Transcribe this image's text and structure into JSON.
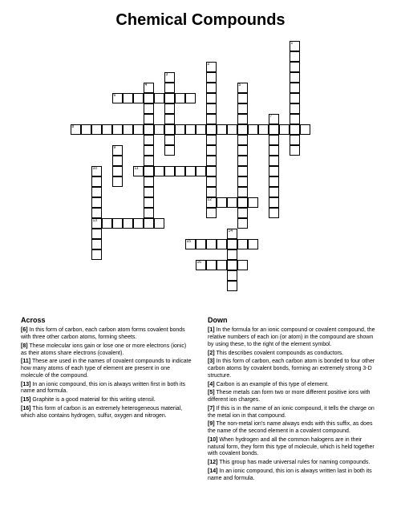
{
  "title": "Chemical Compounds",
  "grid": {
    "cell_size": 13,
    "cols": 25,
    "rows": 25,
    "background": "#ffffff",
    "border_color": "#000000",
    "cells": [
      {
        "r": 0,
        "c": 21,
        "n": "1"
      },
      {
        "r": 1,
        "c": 21
      },
      {
        "r": 2,
        "c": 13,
        "n": "2"
      },
      {
        "r": 2,
        "c": 21
      },
      {
        "r": 3,
        "c": 9,
        "n": "3"
      },
      {
        "r": 3,
        "c": 13
      },
      {
        "r": 3,
        "c": 21
      },
      {
        "r": 4,
        "c": 7,
        "n": "4"
      },
      {
        "r": 4,
        "c": 9
      },
      {
        "r": 4,
        "c": 13
      },
      {
        "r": 4,
        "c": 16,
        "n": "5"
      },
      {
        "r": 4,
        "c": 21
      },
      {
        "r": 5,
        "c": 4,
        "n": "6"
      },
      {
        "r": 5,
        "c": 5
      },
      {
        "r": 5,
        "c": 6
      },
      {
        "r": 5,
        "c": 7
      },
      {
        "r": 5,
        "c": 8
      },
      {
        "r": 5,
        "c": 9
      },
      {
        "r": 5,
        "c": 10
      },
      {
        "r": 5,
        "c": 11
      },
      {
        "r": 5,
        "c": 13
      },
      {
        "r": 5,
        "c": 16
      },
      {
        "r": 5,
        "c": 21
      },
      {
        "r": 6,
        "c": 7
      },
      {
        "r": 6,
        "c": 9
      },
      {
        "r": 6,
        "c": 13
      },
      {
        "r": 6,
        "c": 16
      },
      {
        "r": 6,
        "c": 21
      },
      {
        "r": 7,
        "c": 7
      },
      {
        "r": 7,
        "c": 9
      },
      {
        "r": 7,
        "c": 13
      },
      {
        "r": 7,
        "c": 16
      },
      {
        "r": 7,
        "c": 19,
        "n": "7"
      },
      {
        "r": 7,
        "c": 21
      },
      {
        "r": 8,
        "c": 0,
        "n": "8"
      },
      {
        "r": 8,
        "c": 1
      },
      {
        "r": 8,
        "c": 2
      },
      {
        "r": 8,
        "c": 3
      },
      {
        "r": 8,
        "c": 4
      },
      {
        "r": 8,
        "c": 5
      },
      {
        "r": 8,
        "c": 6
      },
      {
        "r": 8,
        "c": 7
      },
      {
        "r": 8,
        "c": 8
      },
      {
        "r": 8,
        "c": 9
      },
      {
        "r": 8,
        "c": 10
      },
      {
        "r": 8,
        "c": 11
      },
      {
        "r": 8,
        "c": 12
      },
      {
        "r": 8,
        "c": 13
      },
      {
        "r": 8,
        "c": 14
      },
      {
        "r": 8,
        "c": 15
      },
      {
        "r": 8,
        "c": 16
      },
      {
        "r": 8,
        "c": 17
      },
      {
        "r": 8,
        "c": 18
      },
      {
        "r": 8,
        "c": 19
      },
      {
        "r": 8,
        "c": 20
      },
      {
        "r": 8,
        "c": 21
      },
      {
        "r": 8,
        "c": 22
      },
      {
        "r": 9,
        "c": 7
      },
      {
        "r": 9,
        "c": 9
      },
      {
        "r": 9,
        "c": 13
      },
      {
        "r": 9,
        "c": 16
      },
      {
        "r": 9,
        "c": 19
      },
      {
        "r": 9,
        "c": 21
      },
      {
        "r": 10,
        "c": 4,
        "n": "9"
      },
      {
        "r": 10,
        "c": 7
      },
      {
        "r": 10,
        "c": 9
      },
      {
        "r": 10,
        "c": 13
      },
      {
        "r": 10,
        "c": 16
      },
      {
        "r": 10,
        "c": 19
      },
      {
        "r": 10,
        "c": 21
      },
      {
        "r": 11,
        "c": 4
      },
      {
        "r": 11,
        "c": 7
      },
      {
        "r": 11,
        "c": 13
      },
      {
        "r": 11,
        "c": 16
      },
      {
        "r": 11,
        "c": 19
      },
      {
        "r": 12,
        "c": 2,
        "n": "10"
      },
      {
        "r": 12,
        "c": 4
      },
      {
        "r": 12,
        "c": 6,
        "n": "11"
      },
      {
        "r": 12,
        "c": 7
      },
      {
        "r": 12,
        "c": 8
      },
      {
        "r": 12,
        "c": 9
      },
      {
        "r": 12,
        "c": 10
      },
      {
        "r": 12,
        "c": 11
      },
      {
        "r": 12,
        "c": 12
      },
      {
        "r": 12,
        "c": 13
      },
      {
        "r": 12,
        "c": 16
      },
      {
        "r": 12,
        "c": 19
      },
      {
        "r": 13,
        "c": 2
      },
      {
        "r": 13,
        "c": 4
      },
      {
        "r": 13,
        "c": 7
      },
      {
        "r": 13,
        "c": 13
      },
      {
        "r": 13,
        "c": 16
      },
      {
        "r": 13,
        "c": 19
      },
      {
        "r": 14,
        "c": 2
      },
      {
        "r": 14,
        "c": 7
      },
      {
        "r": 14,
        "c": 13
      },
      {
        "r": 14,
        "c": 16
      },
      {
        "r": 14,
        "c": 19
      },
      {
        "r": 15,
        "c": 2
      },
      {
        "r": 15,
        "c": 7
      },
      {
        "r": 15,
        "c": 13,
        "n": "12"
      },
      {
        "r": 15,
        "c": 14
      },
      {
        "r": 15,
        "c": 15
      },
      {
        "r": 15,
        "c": 16
      },
      {
        "r": 15,
        "c": 17
      },
      {
        "r": 15,
        "c": 19
      },
      {
        "r": 16,
        "c": 2
      },
      {
        "r": 16,
        "c": 7
      },
      {
        "r": 16,
        "c": 13
      },
      {
        "r": 16,
        "c": 16
      },
      {
        "r": 16,
        "c": 19
      },
      {
        "r": 17,
        "c": 2,
        "n": "13"
      },
      {
        "r": 17,
        "c": 3
      },
      {
        "r": 17,
        "c": 4
      },
      {
        "r": 17,
        "c": 5
      },
      {
        "r": 17,
        "c": 6
      },
      {
        "r": 17,
        "c": 7
      },
      {
        "r": 17,
        "c": 8
      },
      {
        "r": 17,
        "c": 16
      },
      {
        "r": 18,
        "c": 2
      },
      {
        "r": 18,
        "c": 15,
        "n": "14"
      },
      {
        "r": 19,
        "c": 2
      },
      {
        "r": 19,
        "c": 11,
        "n": "15"
      },
      {
        "r": 19,
        "c": 12
      },
      {
        "r": 19,
        "c": 13
      },
      {
        "r": 19,
        "c": 14
      },
      {
        "r": 19,
        "c": 15
      },
      {
        "r": 19,
        "c": 16
      },
      {
        "r": 19,
        "c": 17
      },
      {
        "r": 20,
        "c": 2
      },
      {
        "r": 20,
        "c": 15
      },
      {
        "r": 21,
        "c": 12,
        "n": "16"
      },
      {
        "r": 21,
        "c": 13
      },
      {
        "r": 21,
        "c": 14
      },
      {
        "r": 21,
        "c": 15
      },
      {
        "r": 21,
        "c": 16
      },
      {
        "r": 22,
        "c": 15
      },
      {
        "r": 23,
        "c": 15
      }
    ]
  },
  "clues": {
    "across_heading": "Across",
    "down_heading": "Down",
    "across": [
      {
        "n": "[6]",
        "t": "In this form of carbon, each carbon atom forms covalent bonds with three other carbon atoms, forming sheets."
      },
      {
        "n": "[8]",
        "t": "These molecular ions gain or lose one or more electrons (ionic) as their atoms share electrons (covalent)."
      },
      {
        "n": "[11]",
        "t": "These are used in the names of covalent compounds to indicate how many atoms of each type of element are present in one molecule of the compound."
      },
      {
        "n": "[13]",
        "t": "In an ionic compound, this ion is always written first in both its name and formula."
      },
      {
        "n": "[15]",
        "t": "Graphite is a good material for this writing utensil."
      },
      {
        "n": "[16]",
        "t": "This form of carbon is an extremely heterogeneous material, which also contains hydrogen, sulfur, oxygen and nitrogen."
      }
    ],
    "down": [
      {
        "n": "[1]",
        "t": "In the formula for an ionic compound or covalent compound, the relative numbers of each ion (or atom) in the compound are shown by using these, to the right of the element symbol."
      },
      {
        "n": "[2]",
        "t": "This describes covalent compounds as conductors."
      },
      {
        "n": "[3]",
        "t": "In this form of carbon, each carbon atom is bonded to four other carbon atoms by covalent bonds, forming an extremely strong 3-D structure."
      },
      {
        "n": "[4]",
        "t": "Carbon is an example of this type of element."
      },
      {
        "n": "[5]",
        "t": "These metals can form two or more different positive ions with different ion charges."
      },
      {
        "n": "[7]",
        "t": "If this is in the name of an ionic compound, it tells the charge on the metal ion in that compound."
      },
      {
        "n": "[9]",
        "t": "The non-metal ion's name always ends with this suffix, as does the name of the second element in a covalent compound."
      },
      {
        "n": "[10]",
        "t": "When hydrogen and all the common halogens are in their natural form, they form this type of molecule, which is held together with covalent bonds."
      },
      {
        "n": "[12]",
        "t": "This group has made universal rules for naming compounds."
      },
      {
        "n": "[14]",
        "t": "In an ionic compound, this ion is always written last in both its name and formula."
      }
    ]
  }
}
